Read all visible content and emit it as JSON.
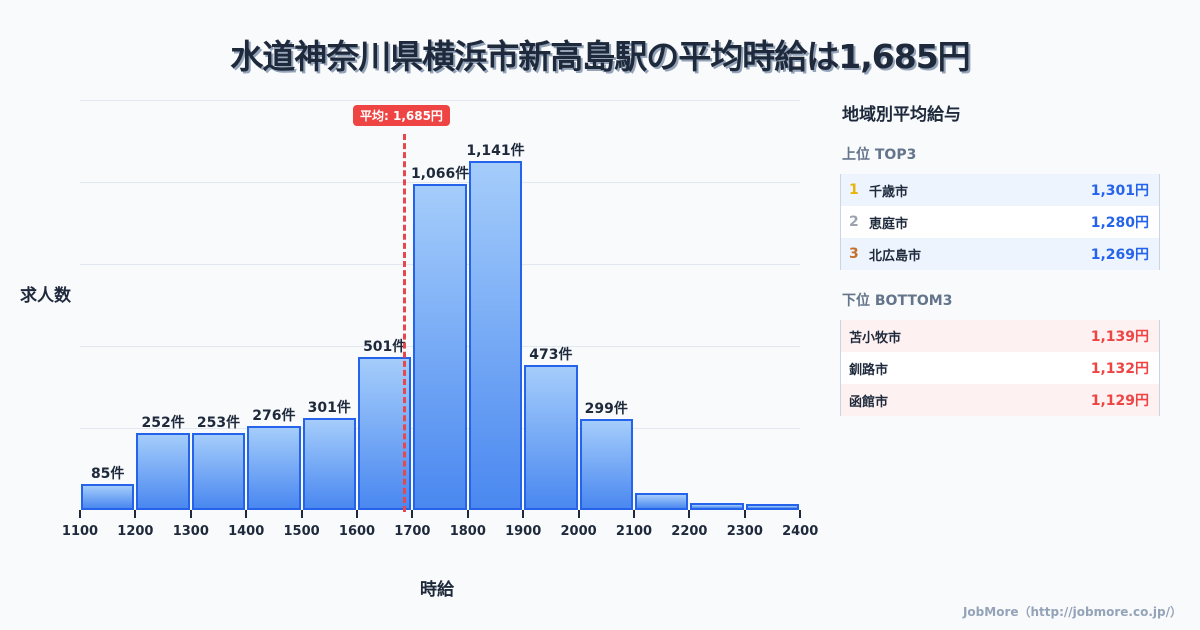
{
  "title": "水道神奈川県横浜市新高島駅の平均時給は1,685円",
  "chart_data": {
    "type": "bar",
    "title": "水道神奈川県横浜市新高島駅の平均時給は1,685円",
    "xlabel": "時給",
    "ylabel": "求人数",
    "x_ticks": [
      "1100",
      "1200",
      "1300",
      "1400",
      "1500",
      "1600",
      "1700",
      "1800",
      "1900",
      "2000",
      "2100",
      "2200",
      "2300",
      "2400"
    ],
    "categories": [
      "1100-1200",
      "1200-1300",
      "1300-1400",
      "1400-1500",
      "1500-1600",
      "1600-1700",
      "1700-1800",
      "1800-1900",
      "1900-2000",
      "2000-2100",
      "2100-2200",
      "2200-2300",
      "2300-2400"
    ],
    "values": [
      85,
      252,
      253,
      276,
      301,
      501,
      1066,
      1141,
      473,
      299,
      55,
      22,
      18
    ],
    "labels": [
      "85件",
      "252件",
      "253件",
      "276件",
      "301件",
      "501件",
      "1,066件",
      "1,141件",
      "473件",
      "299件",
      "",
      "",
      ""
    ],
    "average": {
      "value": 1685,
      "label": "平均: 1,685円"
    },
    "ylim": [
      0,
      1250
    ],
    "grid": true
  },
  "panel": {
    "title": "地域別平均給与",
    "top_heading": "上位 TOP3",
    "top": [
      {
        "rank": "1",
        "name": "千歳市",
        "value": "1,301円",
        "color": "#eab308"
      },
      {
        "rank": "2",
        "name": "恵庭市",
        "value": "1,280円",
        "color": "#9ca3af"
      },
      {
        "rank": "3",
        "name": "北広島市",
        "value": "1,269円",
        "color": "#c2712d"
      }
    ],
    "bottom_heading": "下位 BOTTOM3",
    "bottom": [
      {
        "name": "苫小牧市",
        "value": "1,139円"
      },
      {
        "name": "釧路市",
        "value": "1,132円"
      },
      {
        "name": "函館市",
        "value": "1,129円"
      }
    ]
  },
  "footer": "JobMore（http://jobmore.co.jp/）"
}
